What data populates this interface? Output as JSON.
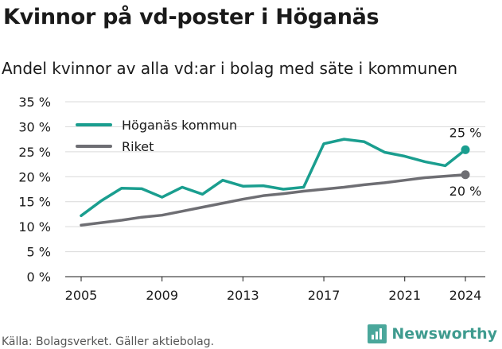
{
  "title": "Kvinnor på vd-poster i Höganäs",
  "subtitle": "Andel kvinnor av alla vd:ar i bolag med säte i kommunen",
  "source": "Källa: Bolagsverket. Gäller aktiebolag.",
  "brand": "Newsworthy",
  "colors": {
    "hoganas": "#1a9e8f",
    "riket": "#6e6e73",
    "grid": "#d9d9d9",
    "brand": "#3f9b8f"
  },
  "chart_data": {
    "type": "line",
    "x": [
      2005,
      2006,
      2007,
      2008,
      2009,
      2010,
      2011,
      2012,
      2013,
      2014,
      2015,
      2016,
      2017,
      2018,
      2019,
      2020,
      2021,
      2022,
      2023,
      2024
    ],
    "xticks": [
      2005,
      2009,
      2013,
      2017,
      2021,
      2024
    ],
    "xtick_labels": [
      "2005",
      "2009",
      "2013",
      "2017",
      "2021",
      "2024"
    ],
    "ylim": [
      0,
      35
    ],
    "yticks": [
      0,
      5,
      10,
      15,
      20,
      25,
      30,
      35
    ],
    "ytick_labels": [
      "0 %",
      "5 %",
      "10 %",
      "15 %",
      "20 %",
      "25 %",
      "30 %",
      "35 %"
    ],
    "grid": "horizontal",
    "legend_position": "top-left",
    "series": [
      {
        "name": "Höganäs kommun",
        "color": "#1a9e8f",
        "values": [
          12.2,
          15.2,
          17.7,
          17.6,
          15.9,
          17.9,
          16.5,
          19.3,
          18.1,
          18.2,
          17.5,
          17.9,
          26.6,
          27.5,
          27.0,
          24.9,
          24.1,
          23.0,
          22.2,
          25.4
        ],
        "end_label": "25 %"
      },
      {
        "name": "Riket",
        "color": "#6e6e73",
        "values": [
          10.3,
          10.8,
          11.3,
          11.9,
          12.3,
          13.1,
          13.9,
          14.7,
          15.5,
          16.2,
          16.6,
          17.1,
          17.5,
          17.9,
          18.4,
          18.8,
          19.3,
          19.8,
          20.1,
          20.4
        ],
        "end_label": "20 %"
      }
    ]
  }
}
